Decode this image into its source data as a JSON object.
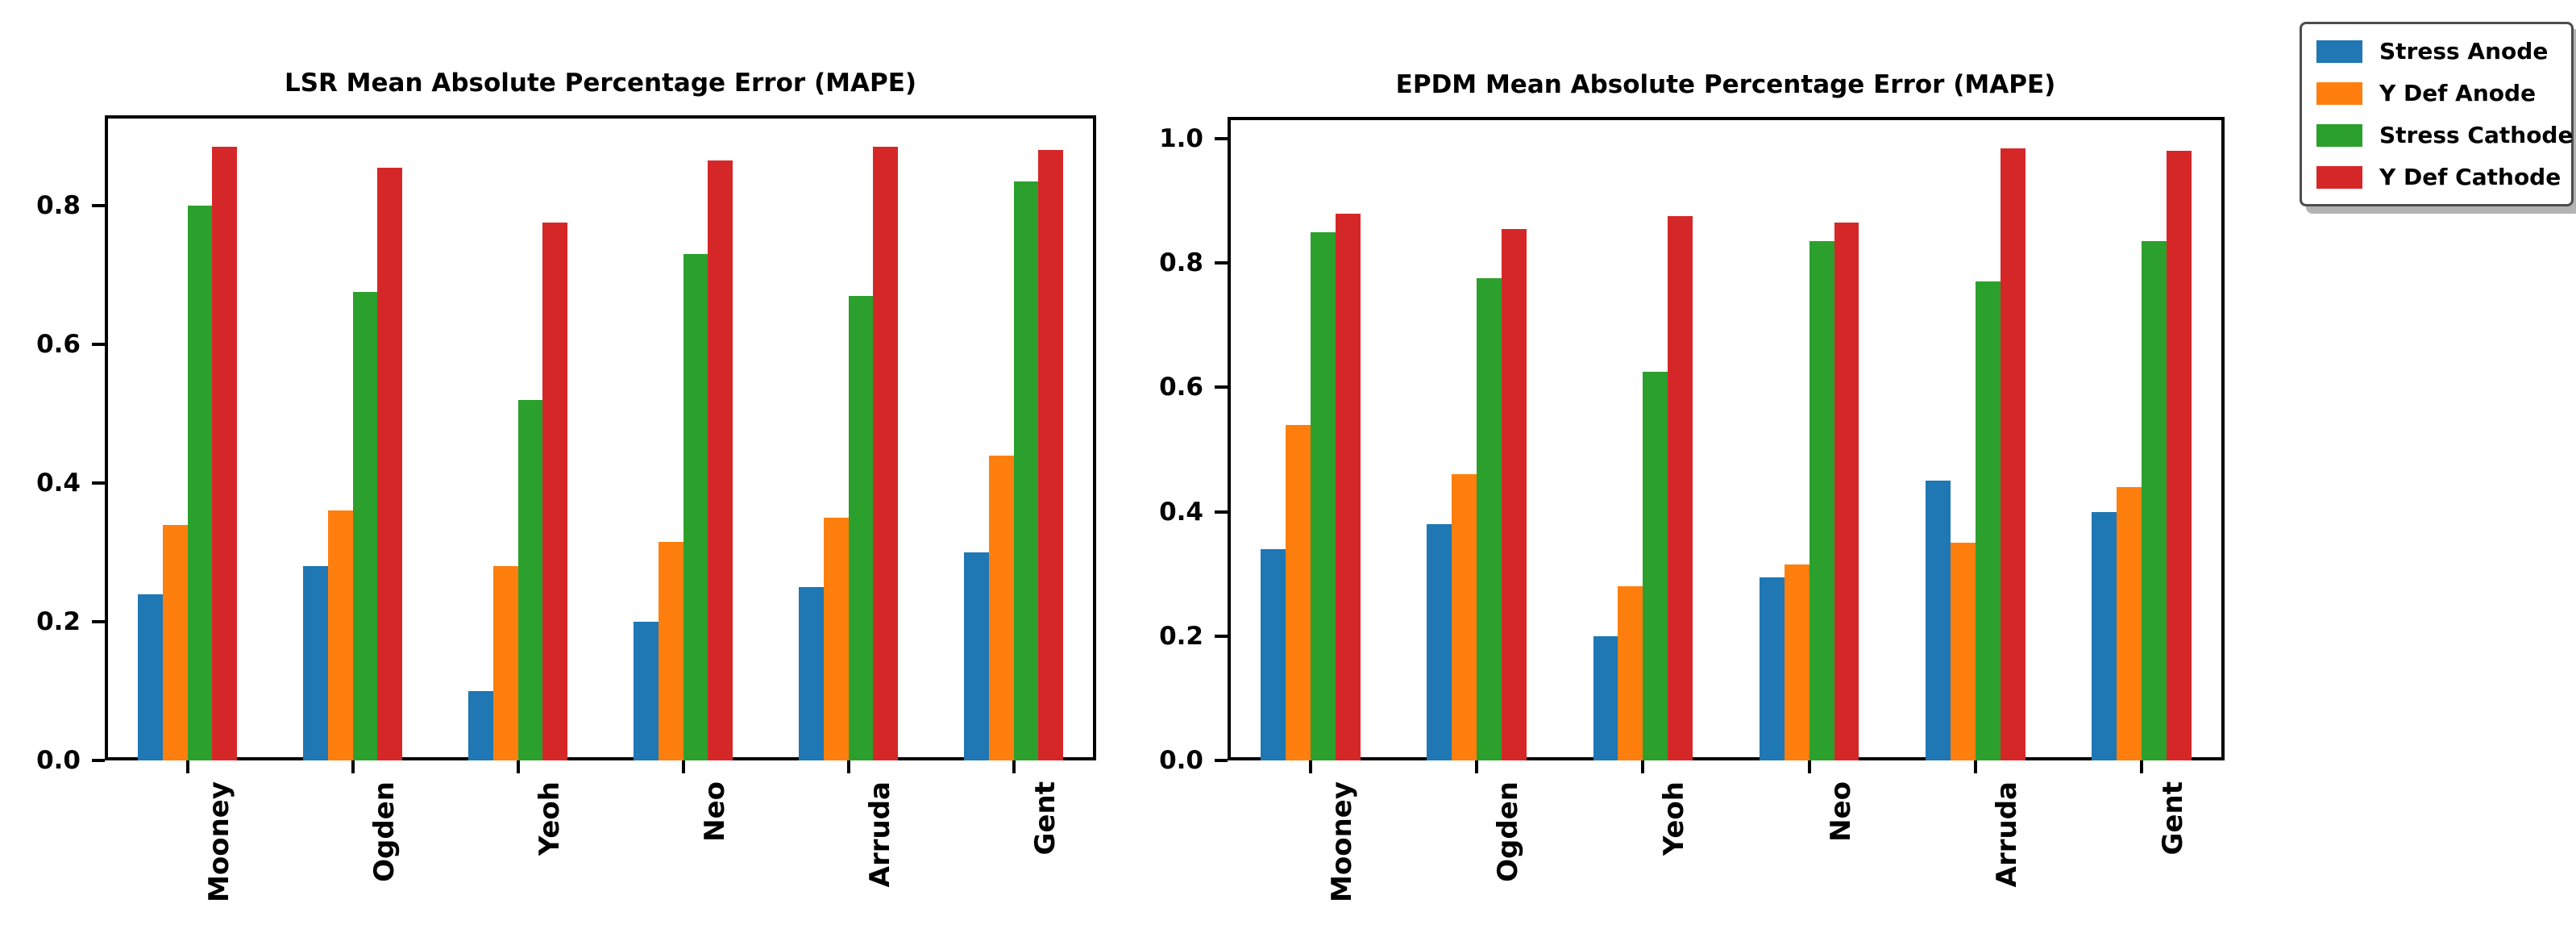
{
  "page": {
    "background": "#ffffff"
  },
  "legend": {
    "position": "top-right",
    "items": [
      {
        "label": "Stress Anode",
        "color": "#1f77b4"
      },
      {
        "label": "Y Def Anode",
        "color": "#ff7f0e"
      },
      {
        "label": "Stress Cathode",
        "color": "#2ca02c"
      },
      {
        "label": "Y Def Cathode",
        "color": "#d62728"
      }
    ]
  },
  "chart_data": [
    {
      "type": "bar",
      "title": "LSR Mean Absolute Percentage Error (MAPE)",
      "categories": [
        "Mooney",
        "Ogden",
        "Yeoh",
        "Neo",
        "Arruda",
        "Gent"
      ],
      "series": [
        {
          "name": "Stress Anode",
          "color": "#1f77b4",
          "values": [
            0.24,
            0.28,
            0.1,
            0.2,
            0.25,
            0.3
          ]
        },
        {
          "name": "Y Def Anode",
          "color": "#ff7f0e",
          "values": [
            0.34,
            0.36,
            0.28,
            0.315,
            0.35,
            0.44
          ]
        },
        {
          "name": "Stress Cathode",
          "color": "#2ca02c",
          "values": [
            0.8,
            0.675,
            0.52,
            0.73,
            0.67,
            0.835
          ]
        },
        {
          "name": "Y Def Cathode",
          "color": "#d62728",
          "values": [
            0.885,
            0.855,
            0.775,
            0.865,
            0.885,
            0.88
          ]
        }
      ],
      "xlabel": "",
      "ylabel": "",
      "ylim": [
        0,
        0.93
      ],
      "yticks": [
        0.0,
        0.2,
        0.4,
        0.6,
        0.8
      ],
      "tick_label_rotation": 90,
      "grid": false,
      "legend_position": "outside-top-right"
    },
    {
      "type": "bar",
      "title": "EPDM Mean Absolute Percentage Error (MAPE)",
      "categories": [
        "Mooney",
        "Ogden",
        "Yeoh",
        "Neo",
        "Arruda",
        "Gent"
      ],
      "series": [
        {
          "name": "Stress Anode",
          "color": "#1f77b4",
          "values": [
            0.34,
            0.38,
            0.2,
            0.295,
            0.45,
            0.4
          ]
        },
        {
          "name": "Y Def Anode",
          "color": "#ff7f0e",
          "values": [
            0.54,
            0.46,
            0.28,
            0.315,
            0.35,
            0.44
          ]
        },
        {
          "name": "Stress Cathode",
          "color": "#2ca02c",
          "values": [
            0.85,
            0.775,
            0.625,
            0.835,
            0.77,
            0.835
          ]
        },
        {
          "name": "Y Def Cathode",
          "color": "#d62728",
          "values": [
            0.88,
            0.855,
            0.875,
            0.865,
            0.985,
            0.98
          ]
        }
      ],
      "xlabel": "",
      "ylabel": "",
      "ylim": [
        0,
        1.035
      ],
      "yticks": [
        0.0,
        0.2,
        0.4,
        0.6,
        0.8,
        1.0
      ],
      "tick_label_rotation": 90,
      "grid": false,
      "legend_position": "outside-top-right"
    }
  ]
}
